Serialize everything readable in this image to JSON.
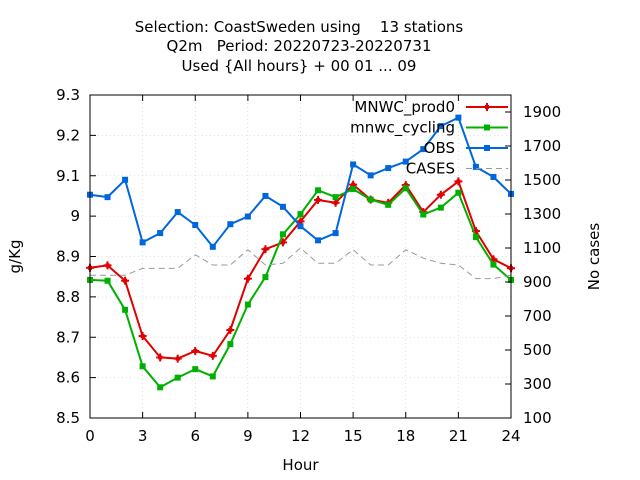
{
  "chart_data": {
    "type": "line",
    "title_lines": [
      "Selection: CoastSweden using    13 stations",
      "Q2m   Period: 20220723-20220731",
      "Used {All hours} + 00 01 ... 09"
    ],
    "xlabel": "Hour",
    "ylabel": "g/Kg",
    "y2label": "No cases",
    "xlim": [
      0,
      24
    ],
    "ylim": [
      8.5,
      9.3
    ],
    "y2lim": [
      100,
      2000
    ],
    "xticks": [
      0,
      3,
      6,
      9,
      12,
      15,
      18,
      21,
      24
    ],
    "yticks": [
      8.5,
      8.6,
      8.7,
      8.8,
      8.9,
      9,
      9.1,
      9.2,
      9.3
    ],
    "ytick_labels": [
      "8.5",
      "8.6",
      "8.7",
      "8.8",
      "8.9",
      "9",
      "9.1",
      "9.2",
      "9.3"
    ],
    "y2ticks": [
      100,
      300,
      500,
      700,
      900,
      1100,
      1300,
      1500,
      1700,
      1900
    ],
    "legend_position": "top-right",
    "x": [
      0,
      1,
      2,
      3,
      4,
      5,
      6,
      7,
      8,
      9,
      10,
      11,
      12,
      13,
      14,
      15,
      16,
      17,
      18,
      19,
      20,
      21,
      22,
      23,
      24
    ],
    "series": [
      {
        "name": "MNWC_prod0",
        "color": "#e00000",
        "marker": "plus",
        "axis": "y",
        "values": [
          8.872,
          8.878,
          8.84,
          8.703,
          8.65,
          8.647,
          8.666,
          8.654,
          8.718,
          8.845,
          8.918,
          8.935,
          8.987,
          9.04,
          9.033,
          9.078,
          9.041,
          9.033,
          9.077,
          9.01,
          9.053,
          9.086,
          8.963,
          8.893,
          8.871
        ]
      },
      {
        "name": "mnwc_cycling",
        "color": "#00b000",
        "marker": "box",
        "axis": "y",
        "values": [
          8.842,
          8.84,
          8.768,
          8.628,
          8.576,
          8.6,
          8.621,
          8.603,
          8.683,
          8.781,
          8.849,
          8.955,
          9.005,
          9.064,
          9.047,
          9.067,
          9.041,
          9.028,
          9.069,
          9.004,
          9.021,
          9.058,
          8.948,
          8.88,
          8.842
        ]
      },
      {
        "name": "OBS",
        "color": "#0066dd",
        "marker": "box",
        "axis": "y",
        "values": [
          9.053,
          9.047,
          9.09,
          8.935,
          8.958,
          9.01,
          8.978,
          8.924,
          8.98,
          8.999,
          9.05,
          9.023,
          8.975,
          8.94,
          8.958,
          9.128,
          9.101,
          9.119,
          9.135,
          9.166,
          9.223,
          9.244,
          9.122,
          9.097,
          9.055
        ]
      },
      {
        "name": "CASES",
        "color": "#999999",
        "marker": "none",
        "dashed": true,
        "axis": "y2",
        "values": [
          940,
          940,
          940,
          980,
          980,
          980,
          1060,
          1000,
          1000,
          1090,
          1000,
          1010,
          1100,
          1010,
          1010,
          1090,
          1000,
          1000,
          1090,
          1040,
          1010,
          1000,
          920,
          920,
          940
        ]
      }
    ]
  }
}
